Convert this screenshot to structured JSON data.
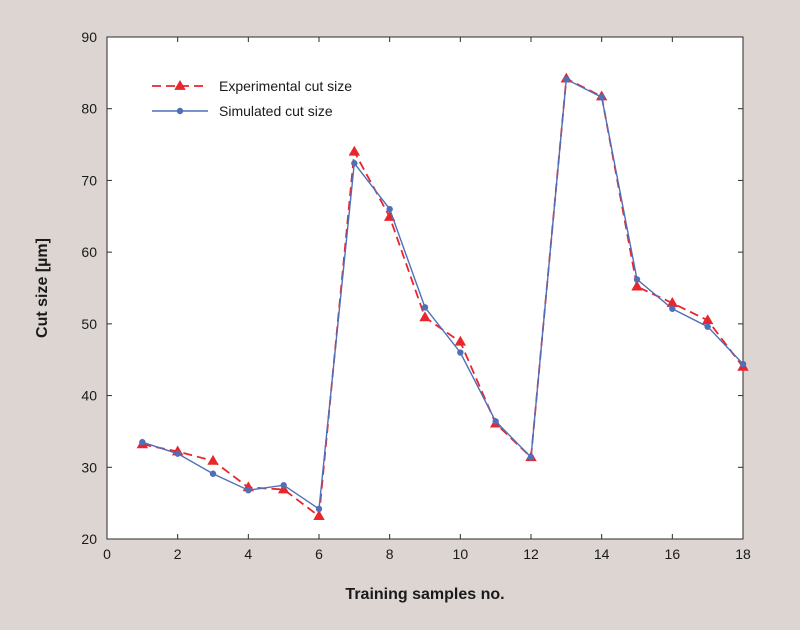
{
  "chart_data": {
    "type": "line",
    "title": "",
    "xlabel": "Training samples no.",
    "ylabel": "Cut size [µm]",
    "xlim": [
      0,
      18
    ],
    "ylim": [
      20,
      90
    ],
    "xticks": [
      0,
      2,
      4,
      6,
      8,
      10,
      12,
      14,
      16,
      18
    ],
    "yticks": [
      20,
      30,
      40,
      50,
      60,
      70,
      80,
      90
    ],
    "grid": false,
    "legend_position": "top-left",
    "series": [
      {
        "name": "Experimental cut size",
        "color": "#e8262c",
        "line_style": "dashed",
        "marker": "triangle",
        "x": [
          1,
          2,
          3,
          4,
          5,
          6,
          7,
          8,
          9,
          10,
          11,
          12,
          13,
          14,
          15,
          16,
          17,
          18
        ],
        "y": [
          33.2,
          32.2,
          30.9,
          27.2,
          26.9,
          23.2,
          74.0,
          64.9,
          50.9,
          47.5,
          36.1,
          31.4,
          84.2,
          81.7,
          55.2,
          52.9,
          50.5,
          44.0
        ]
      },
      {
        "name": "Simulated cut size",
        "color": "#4f6fb8",
        "line_style": "solid",
        "marker": "circle",
        "x": [
          1,
          2,
          3,
          4,
          5,
          6,
          7,
          8,
          9,
          10,
          11,
          12,
          13,
          14,
          15,
          16,
          17,
          18
        ],
        "y": [
          33.5,
          31.9,
          29.1,
          26.8,
          27.5,
          24.2,
          72.4,
          66.0,
          52.3,
          46.0,
          36.4,
          31.4,
          84.1,
          81.6,
          56.2,
          52.1,
          49.6,
          44.4
        ]
      }
    ]
  }
}
